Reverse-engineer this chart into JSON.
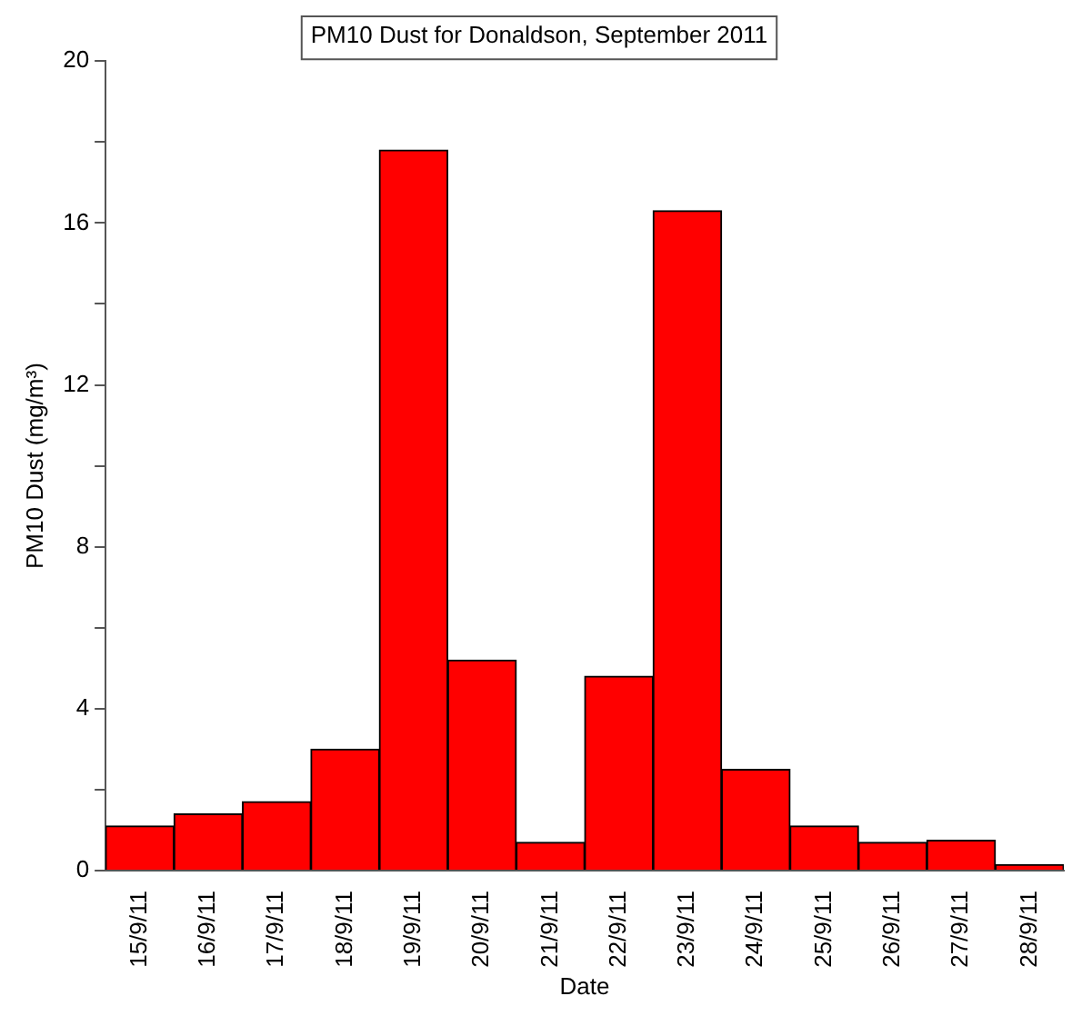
{
  "chart_data": {
    "type": "bar",
    "title": "PM10 Dust for Donaldson, September 2011",
    "xlabel": "Date",
    "ylabel": "PM10 Dust (mg/m³)",
    "categories": [
      "15/9/11",
      "16/9/11",
      "17/9/11",
      "18/9/11",
      "19/9/11",
      "20/9/11",
      "21/9/11",
      "22/9/11",
      "23/9/11",
      "24/9/11",
      "25/9/11",
      "26/9/11",
      "27/9/11",
      "28/9/11"
    ],
    "values": [
      1.1,
      1.4,
      1.7,
      3.0,
      17.8,
      5.2,
      0.7,
      4.8,
      16.3,
      2.5,
      1.1,
      0.7,
      0.75,
      0.15
    ],
    "color": "#ff0000",
    "ylim": [
      0,
      20
    ],
    "yticks": [
      0,
      {
        "value": 2,
        "label": null
      },
      4,
      {
        "value": 6,
        "label": null
      },
      8,
      {
        "value": 10,
        "label": null
      },
      12,
      {
        "value": 14,
        "label": null
      },
      16,
      {
        "value": 18,
        "label": null
      },
      20
    ],
    "grid": false,
    "legend": false
  }
}
